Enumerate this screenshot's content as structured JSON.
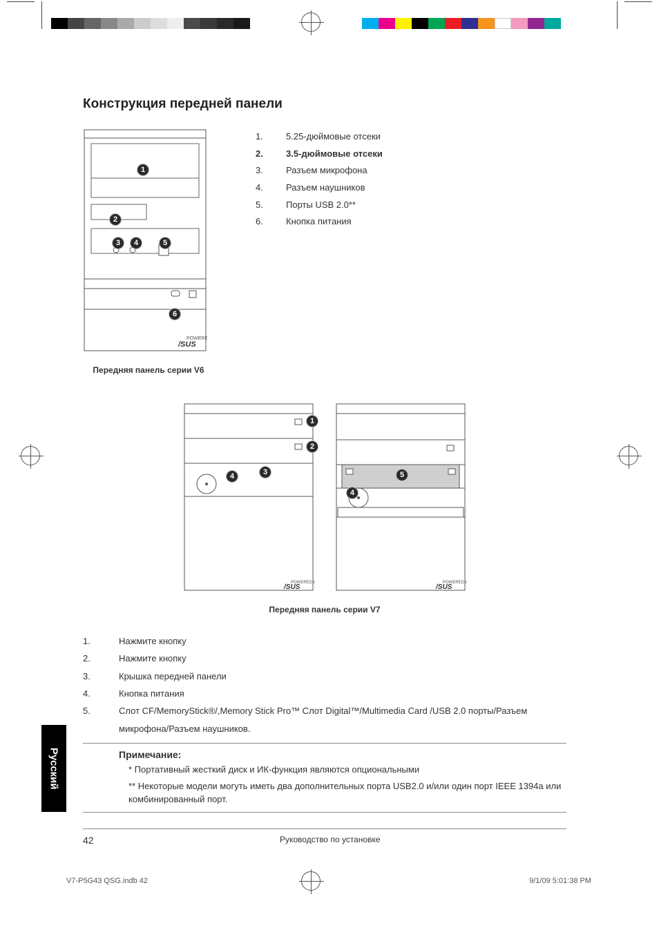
{
  "colorbar_left": [
    "#000000",
    "#444444",
    "#666666",
    "#888888",
    "#aaaaaa",
    "#cccccc",
    "#dddddd",
    "#eeeeee",
    "#4a4a4a",
    "#3a3a3a",
    "#2a2a2a",
    "#1a1a1a"
  ],
  "colorbar_right": [
    "#00aeef",
    "#ec008c",
    "#fff200",
    "#000000",
    "#00a651",
    "#ed1c24",
    "#2e3192",
    "#f7941d",
    "#ffffff",
    "#f49ac1",
    "#92278f",
    "#00a99d"
  ],
  "title": "Конструкция передней панели",
  "v6": {
    "caption": "Передняя панель серии V6",
    "legend": [
      {
        "n": "1.",
        "t": "5.25-дюймовые отсеки",
        "bold": false
      },
      {
        "n": "2.",
        "t": "3.5-дюймовые отсеки",
        "bold": true
      },
      {
        "n": "3.",
        "t": "Разъем микрофона",
        "bold": false
      },
      {
        "n": "4.",
        "t": "Разъем наушников",
        "bold": false
      },
      {
        "n": "5.",
        "t": "Порты USB 2.0**",
        "bold": false
      },
      {
        "n": "6.",
        "t": "Кнопка питания",
        "bold": false
      }
    ]
  },
  "v7": {
    "caption": "Передняя панель серии V7",
    "list": [
      {
        "n": "1.",
        "t": "Нажмите кнопку"
      },
      {
        "n": "2.",
        "t": "Нажмите кнопку"
      },
      {
        "n": "3.",
        "t": "Крышка передней панели"
      },
      {
        "n": "4.",
        "t": "Кнопка питания"
      },
      {
        "n": "5.",
        "t": "Слот CF/MemoryStick®/,Memory Stick Pro™ Слот Digital™/Multimedia Card /USB 2.0 порты/Разъем микрофона/Разъем наушников."
      }
    ]
  },
  "note": {
    "title": "Примечание:",
    "line1": "* Портативный жесткий диск и ИК-функция являются опциональными",
    "line2": "** Некоторые модели могуть иметь два дополнительных порта USB2.0 и/или один порт IEEE 1394a или комбинированный порт."
  },
  "lang_tab": "Русский",
  "footer": {
    "page": "42",
    "title": "Руководство по установке"
  },
  "meta": {
    "file": "V7-P5G43 QSG.indb   42",
    "date": "9/1/09   5:01:38 PM"
  }
}
